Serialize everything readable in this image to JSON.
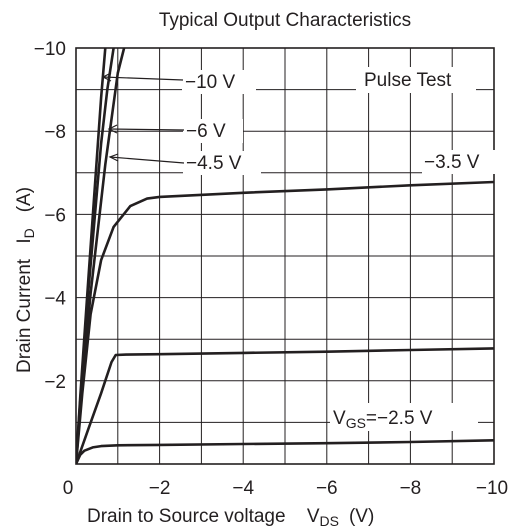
{
  "chart_data": {
    "type": "line",
    "title": "Typical Output Characteristics",
    "xlabel": {
      "main": "Drain to Source voltage",
      "var": "V",
      "sub": "DS",
      "unit": "(V)"
    },
    "ylabel": {
      "main": "Drain Current",
      "var": "I",
      "sub": "D",
      "unit": "(A)"
    },
    "xlim": [
      0,
      -10
    ],
    "ylim": [
      0,
      -10
    ],
    "grid": true,
    "xticks": [
      {
        "v": 0,
        "label": "0"
      },
      {
        "v": -2,
        "label": "−2"
      },
      {
        "v": -4,
        "label": "−4"
      },
      {
        "v": -6,
        "label": "−6"
      },
      {
        "v": -8,
        "label": "−8"
      },
      {
        "v": -10,
        "label": "−10"
      }
    ],
    "yticks": [
      {
        "v": -2,
        "label": "−2"
      },
      {
        "v": -4,
        "label": "−4"
      },
      {
        "v": -6,
        "label": "−6"
      },
      {
        "v": -8,
        "label": "−8"
      },
      {
        "v": -10,
        "label": "−10"
      }
    ],
    "annotation_box": "Pulse Test",
    "series": [
      {
        "name": "−10 V",
        "x": [
          0,
          -0.1,
          -0.3,
          -0.6,
          -0.7
        ],
        "y": [
          0,
          -1.6,
          -4.5,
          -8.8,
          -10
        ]
      },
      {
        "name": "−6 V",
        "x": [
          0,
          -0.1,
          -0.3,
          -0.6,
          -0.75,
          -0.9
        ],
        "y": [
          0,
          -1.5,
          -4.2,
          -7.7,
          -9.0,
          -10
        ]
      },
      {
        "name": "−4.5 V",
        "x": [
          0,
          -0.1,
          -0.35,
          -0.7,
          -1.0,
          -1.15
        ],
        "y": [
          0,
          -1.3,
          -4.1,
          -7.2,
          -9.4,
          -10
        ]
      },
      {
        "name": "−3.5 V",
        "x": [
          0,
          -0.15,
          -0.35,
          -0.6,
          -0.9,
          -1.3,
          -1.7,
          -2.0,
          -4,
          -6,
          -8,
          -10
        ],
        "y": [
          0,
          -1.7,
          -3.6,
          -4.9,
          -5.7,
          -6.2,
          -6.38,
          -6.42,
          -6.52,
          -6.6,
          -6.7,
          -6.78
        ]
      },
      {
        "name": "",
        "x": [
          0,
          -0.3,
          -0.6,
          -0.85,
          -0.95,
          -1.2,
          -2,
          -4,
          -6,
          -8,
          -10
        ],
        "y": [
          0,
          -0.85,
          -1.7,
          -2.45,
          -2.62,
          -2.63,
          -2.64,
          -2.67,
          -2.7,
          -2.74,
          -2.78
        ]
      },
      {
        "name": "",
        "x": [
          0,
          -0.1,
          -0.2,
          -0.4,
          -0.6,
          -1.0,
          -2,
          -4,
          -6,
          -8,
          -10
        ],
        "y": [
          0,
          -0.22,
          -0.32,
          -0.4,
          -0.43,
          -0.45,
          -0.46,
          -0.48,
          -0.5,
          -0.53,
          -0.57
        ]
      }
    ],
    "labels": {
      "m10": "−10 V",
      "m6": "−6 V",
      "m45": "−4.5 V",
      "m35": "−3.5 V",
      "vgs_var": "V",
      "vgs_sub": "GS",
      "vgs_value": "=−2.5 V"
    }
  }
}
